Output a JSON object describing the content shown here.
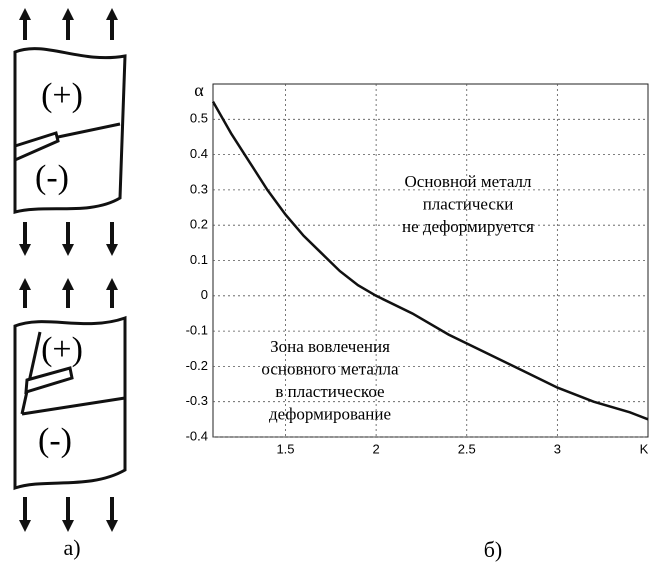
{
  "chart_data": {
    "type": "line",
    "x_label": "K",
    "y_label": "α",
    "annotations": [
      [
        "Основной металл",
        "пластически",
        "не деформируется"
      ],
      [
        "Зона вовлечения",
        "основного металла",
        "в пластическое",
        "деформирование"
      ]
    ],
    "x": [
      1.1,
      1.2,
      1.3,
      1.4,
      1.5,
      1.6,
      1.7,
      1.8,
      1.9,
      2.0,
      2.2,
      2.4,
      2.6,
      2.8,
      3.0,
      3.2,
      3.4,
      3.5
    ],
    "series": [
      {
        "color": "#111111",
        "values": [
          0.55,
          0.46,
          0.38,
          0.3,
          0.23,
          0.17,
          0.12,
          0.07,
          0.03,
          0.0,
          -0.05,
          -0.11,
          -0.16,
          -0.21,
          -0.26,
          -0.3,
          -0.33,
          -0.35
        ]
      }
    ],
    "xlim": [
      1.1,
      3.5
    ],
    "ylim": [
      -0.4,
      0.6
    ],
    "xticks": [
      1.5,
      2,
      2.5,
      3
    ],
    "yticks": [
      0.5,
      0.4,
      0.3,
      0.2,
      0.1,
      0,
      -0.1,
      -0.2,
      -0.3,
      -0.4
    ],
    "grid": true
  },
  "diagram": {
    "labels": [
      "(+)",
      "(-)",
      "(+)",
      "(-)"
    ]
  },
  "panel_labels": [
    "а)",
    "б)"
  ]
}
